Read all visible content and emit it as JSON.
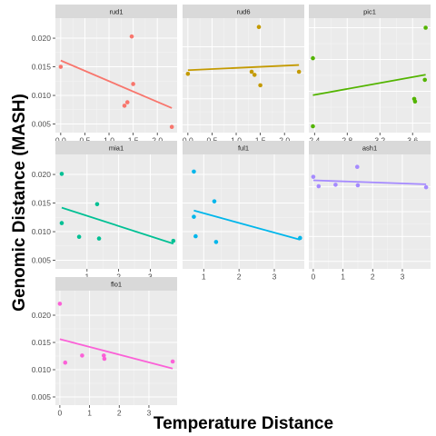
{
  "chart_data": {
    "type": "scatter",
    "xlabel": "Temperature Distance",
    "ylabel": "Genomic Distance (MASH)",
    "shared_y_ticks": [
      0.005,
      0.01,
      0.015,
      0.02
    ],
    "shared_y_tick_labels": [
      "0.005",
      "0.010",
      "0.015",
      "0.020"
    ],
    "grid": true,
    "facets": [
      {
        "name": "rud1",
        "color": "#F8766D",
        "xlim": [
          -0.11,
          2.41
        ],
        "ylim": [
          0.0035,
          0.0235
        ],
        "x_ticks": [
          0.0,
          0.5,
          1.0,
          1.5,
          2.0
        ],
        "x_tick_labels": [
          "0.0",
          "0.5",
          "1.0",
          "1.5",
          "2.0"
        ],
        "x": [
          0.0,
          1.32,
          1.38,
          1.47,
          1.5,
          2.3
        ],
        "y": [
          0.015,
          0.0082,
          0.0088,
          0.0203,
          0.012,
          0.0045
        ],
        "fit": [
          [
            0.0,
            0.0161
          ],
          [
            2.3,
            0.0078
          ]
        ]
      },
      {
        "name": "rud6",
        "color": "#C49A00",
        "xlim": [
          -0.11,
          2.41
        ],
        "ylim": [
          0.0035,
          0.0255
        ],
        "x_ticks": [
          0.0,
          0.5,
          1.0,
          1.5,
          2.0
        ],
        "x_tick_labels": [
          "0.0",
          "0.5",
          "1.0",
          "1.5",
          "2.0"
        ],
        "x": [
          0.0,
          1.32,
          1.38,
          1.47,
          1.5,
          2.3
        ],
        "y": [
          0.0148,
          0.0152,
          0.0146,
          0.0238,
          0.0126,
          0.0152
        ],
        "fit": [
          [
            0.0,
            0.0155
          ],
          [
            2.3,
            0.0165
          ]
        ]
      },
      {
        "name": "pic1",
        "color": "#53B400",
        "xlim": [
          2.33,
          3.82
        ],
        "ylim": [
          0.0035,
          0.0215
        ],
        "x_ticks": [
          2.4,
          2.8,
          3.2,
          3.6
        ],
        "x_tick_labels": [
          "2.4",
          "2.8",
          "3.2",
          "3.6"
        ],
        "x": [
          2.38,
          2.38,
          3.62,
          3.63,
          3.75,
          3.76
        ],
        "y": [
          0.0152,
          0.0045,
          0.0088,
          0.0084,
          0.0118,
          0.02
        ],
        "fit": [
          [
            2.38,
            0.0094
          ],
          [
            3.76,
            0.0126
          ]
        ]
      },
      {
        "name": "mia1",
        "color": "#00C094",
        "xlim": [
          0.0,
          3.85
        ],
        "ylim": [
          0.0035,
          0.0235
        ],
        "x_ticks": [
          1,
          2,
          3
        ],
        "x_tick_labels": [
          "1",
          "2",
          "3"
        ],
        "x": [
          0.2,
          0.2,
          0.75,
          1.32,
          1.38,
          3.73
        ],
        "y": [
          0.0201,
          0.0115,
          0.0091,
          0.0148,
          0.0088,
          0.0084
        ],
        "fit": [
          [
            0.2,
            0.0142
          ],
          [
            3.73,
            0.0079
          ]
        ]
      },
      {
        "name": "ful1",
        "color": "#00B6EB",
        "xlim": [
          0.4,
          3.85
        ],
        "ylim": [
          0.0035,
          0.0235
        ],
        "x_ticks": [
          1,
          2,
          3
        ],
        "x_tick_labels": [
          "1",
          "2",
          "3"
        ],
        "x": [
          0.72,
          0.72,
          0.77,
          1.3,
          1.35,
          3.73
        ],
        "y": [
          0.0205,
          0.0126,
          0.0092,
          0.0153,
          0.0082,
          0.0089
        ],
        "fit": [
          [
            0.72,
            0.0137
          ],
          [
            3.73,
            0.0086
          ]
        ]
      },
      {
        "name": "ash1",
        "color": "#A58AFF",
        "xlim": [
          -0.15,
          3.95
        ],
        "ylim": [
          0.0035,
          0.0265
        ],
        "x_ticks": [
          0,
          1,
          2,
          3
        ],
        "x_tick_labels": [
          "0",
          "1",
          "2",
          "3"
        ],
        "x": [
          0.0,
          0.18,
          0.75,
          1.48,
          1.5,
          3.8
        ],
        "y": [
          0.022,
          0.0201,
          0.0204,
          0.024,
          0.0203,
          0.0199
        ],
        "fit": [
          [
            0.0,
            0.0213
          ],
          [
            3.8,
            0.0205
          ]
        ]
      },
      {
        "name": "flo1",
        "color": "#FB61D7",
        "xlim": [
          -0.15,
          3.95
        ],
        "ylim": [
          0.0035,
          0.0245
        ],
        "x_ticks": [
          0,
          1,
          2,
          3
        ],
        "x_tick_labels": [
          "0",
          "1",
          "2",
          "3"
        ],
        "x": [
          0.0,
          0.18,
          0.75,
          1.48,
          1.5,
          3.8
        ],
        "y": [
          0.0221,
          0.0113,
          0.0126,
          0.0126,
          0.012,
          0.0115
        ],
        "fit": [
          [
            0.0,
            0.0156
          ],
          [
            3.8,
            0.0102
          ]
        ]
      }
    ]
  }
}
